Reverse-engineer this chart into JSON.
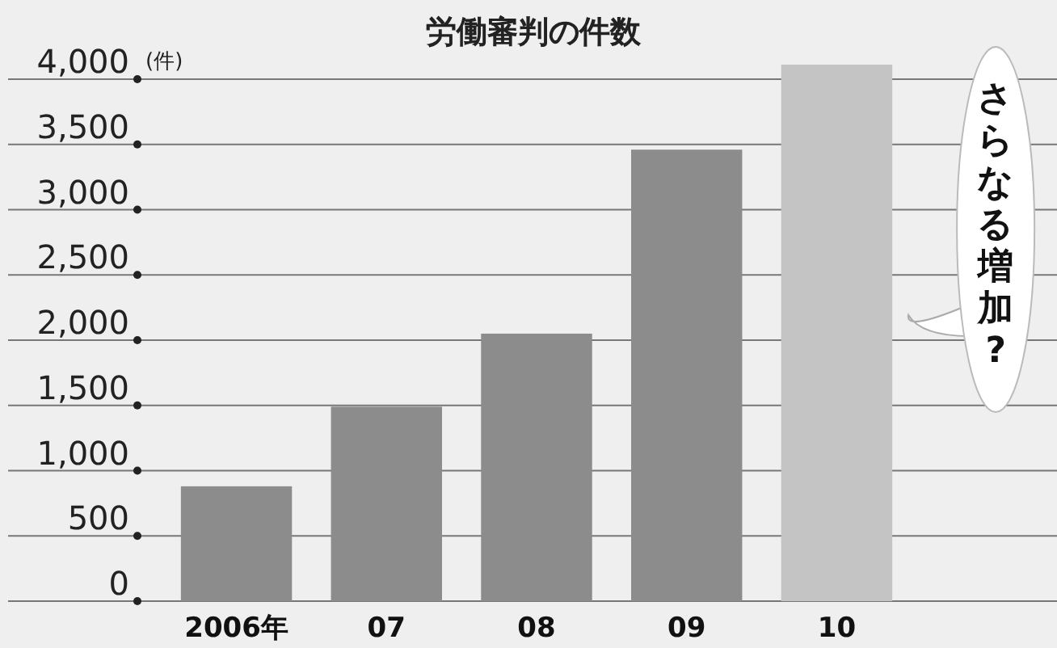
{
  "chart_data": {
    "type": "bar",
    "title": "労働審判の件数",
    "ylabel": "(件)",
    "categories": [
      "2006年",
      "07",
      "08",
      "09",
      "10"
    ],
    "values": [
      880,
      1490,
      2050,
      3460,
      null
    ],
    "color": "#8c8c8c",
    "ylim": [
      0,
      4000
    ],
    "yticks": [
      {
        "value": 0,
        "label": "0"
      },
      {
        "value": 500,
        "label": "500"
      },
      {
        "value": 1000,
        "label": "1,000"
      },
      {
        "value": 1500,
        "label": "1,500"
      },
      {
        "value": 2000,
        "label": "2,000"
      },
      {
        "value": 2500,
        "label": "2,500"
      },
      {
        "value": 3000,
        "label": "3,000"
      },
      {
        "value": 3500,
        "label": "3,500"
      },
      {
        "value": 4000,
        "label": "4,000"
      }
    ],
    "grid": "y",
    "bands": [
      {
        "axis": "x",
        "from": "10",
        "to": "10",
        "label": "さらなる増加?",
        "color": "#c4c4c4"
      }
    ]
  }
}
